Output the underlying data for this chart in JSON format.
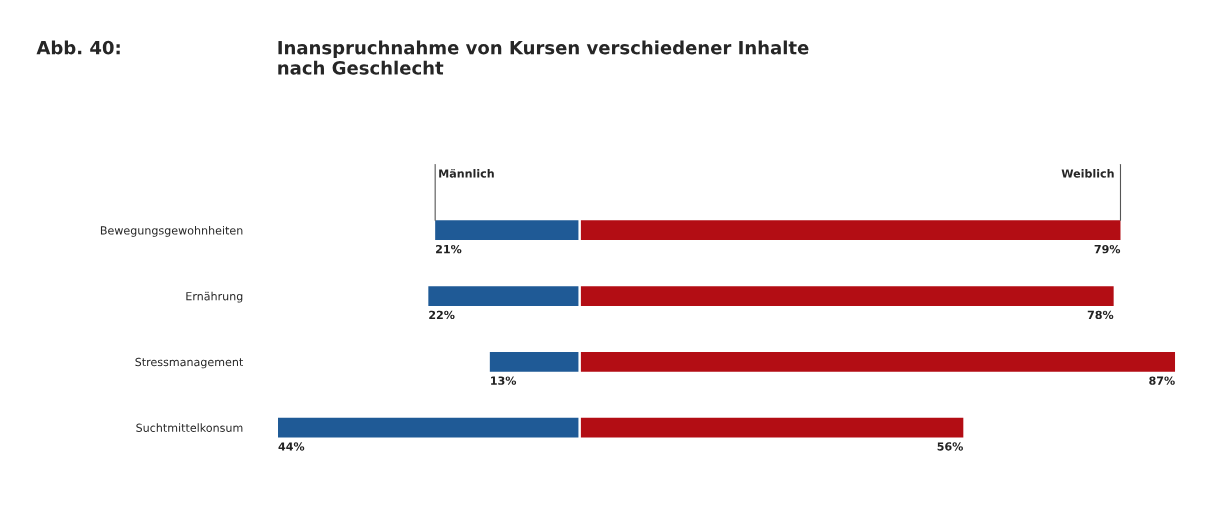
{
  "chart_data": [
    {
      "type": "bar",
      "orientation": "horizontal",
      "title": "Inanspruchnahme von Kursen verschiedener Inhalte\nnach Geschlecht",
      "annotations": [
        "Abb. 40:"
      ],
      "categories": [
        "Bewegungsgewohnheiten",
        "Ernährung",
        "Stressmanagement",
        "Suchtmittelkonsum"
      ],
      "xlim": [
        44,
        0
      ],
      "tick_labels": "y",
      "series": [
        {
          "name": "Männlich",
          "color": "#1f5a96",
          "values": [
            21,
            22,
            13,
            44
          ],
          "value_labels": [
            "21%",
            "22%",
            "13%",
            "44%"
          ]
        }
      ]
    },
    {
      "type": "bar",
      "orientation": "horizontal",
      "categories": [
        null,
        null,
        null,
        null
      ],
      "xlim": [
        0,
        87
      ],
      "tick_labels": false,
      "series": [
        {
          "name": "Weiblich",
          "color": "#b30d14",
          "values": [
            79,
            78,
            87,
            56
          ],
          "value_labels": [
            "79%",
            "78%",
            "87%",
            "56%"
          ]
        }
      ]
    }
  ]
}
